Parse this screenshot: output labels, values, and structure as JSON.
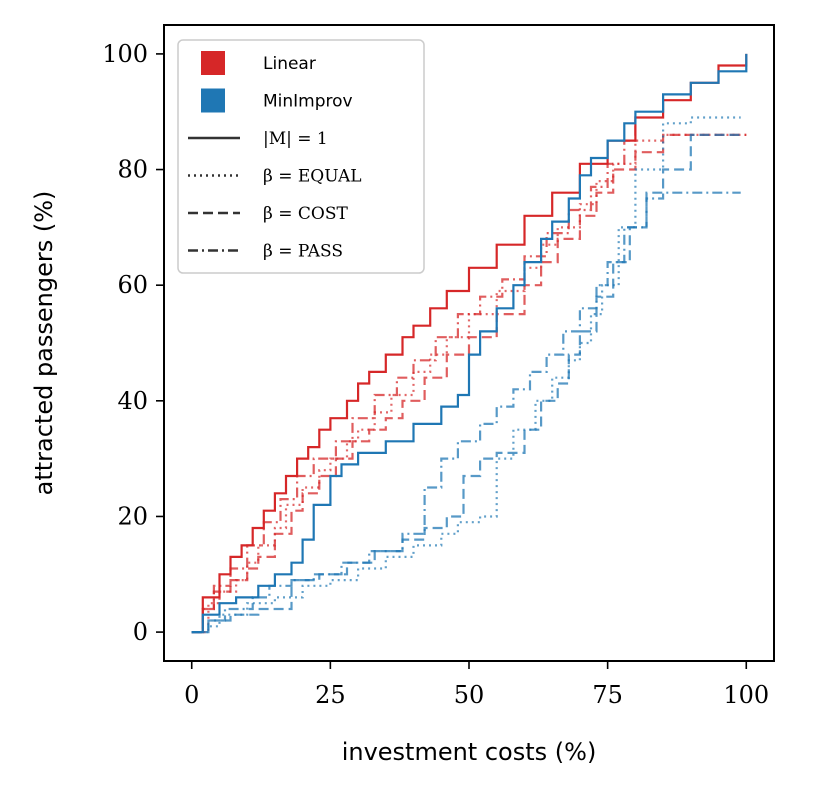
{
  "chart_data": {
    "type": "line",
    "step": true,
    "xlabel": "investment costs (%)",
    "ylabel": "attracted passengers (%)",
    "xlim": [
      -5,
      105
    ],
    "ylim": [
      -5,
      105
    ],
    "xticks": [
      0,
      25,
      50,
      75,
      100
    ],
    "yticks": [
      0,
      20,
      40,
      60,
      80,
      100
    ],
    "x_tick_labels": [
      "0",
      "25",
      "50",
      "75",
      "100"
    ],
    "y_tick_labels": [
      "0",
      "20",
      "40",
      "60",
      "80",
      "100"
    ],
    "colors": {
      "Linear": "#d62728",
      "MinImprov": "#1f77b4"
    },
    "legend": {
      "placement": "top-left",
      "methods": [
        {
          "name": "Linear",
          "color": "#d62728"
        },
        {
          "name": "MinImprov",
          "color": "#1f77b4"
        }
      ],
      "styles": [
        {
          "label": "|M| = 1",
          "dash": "solid"
        },
        {
          "label": "β = EQUAL",
          "dash": "dotted"
        },
        {
          "label": "β = COST",
          "dash": "dashed"
        },
        {
          "label": "β = PASS",
          "dash": "dashdot"
        }
      ]
    },
    "series": [
      {
        "name": "Linear |M|=1",
        "method": "Linear",
        "style": "solid",
        "alpha": 1.0,
        "x": [
          0,
          2,
          2,
          5,
          5,
          7,
          9,
          11,
          13,
          15,
          17,
          19,
          21,
          23,
          25,
          28,
          30,
          32,
          35,
          38,
          40,
          43,
          46,
          50,
          55,
          60,
          65,
          70,
          75,
          80,
          85,
          90,
          95,
          100
        ],
        "y": [
          0,
          0,
          6,
          6,
          10,
          13,
          15,
          18,
          21,
          24,
          27,
          30,
          32,
          35,
          37,
          40,
          43,
          45,
          48,
          51,
          53,
          56,
          59,
          63,
          67,
          72,
          76,
          81,
          85,
          89,
          92,
          95,
          98,
          100
        ]
      },
      {
        "name": "Linear EQUAL",
        "method": "Linear",
        "style": "dotted",
        "alpha": 0.7,
        "x": [
          0,
          3,
          5,
          8,
          10,
          12,
          15,
          17,
          20,
          23,
          25,
          28,
          30,
          33,
          36,
          40,
          43,
          46,
          50,
          55,
          60,
          63,
          66,
          70,
          73,
          76,
          80,
          85,
          90,
          95,
          100
        ],
        "y": [
          0,
          5,
          7,
          9,
          12,
          15,
          18,
          22,
          25,
          28,
          30,
          33,
          35,
          38,
          41,
          45,
          48,
          51,
          55,
          59,
          63,
          67,
          70,
          74,
          78,
          81,
          85,
          86,
          86,
          86,
          86
        ]
      },
      {
        "name": "Linear COST",
        "method": "Linear",
        "style": "dashed",
        "alpha": 0.75,
        "x": [
          0,
          2,
          4,
          7,
          10,
          12,
          15,
          18,
          20,
          23,
          26,
          29,
          32,
          35,
          38,
          42,
          46,
          50,
          55,
          60,
          63,
          66,
          70,
          73,
          76,
          80,
          85,
          90,
          95,
          100
        ],
        "y": [
          0,
          4,
          7,
          9,
          11,
          13,
          17,
          21,
          24,
          27,
          30,
          33,
          35,
          37,
          40,
          44,
          48,
          51,
          55,
          60,
          64,
          68,
          72,
          76,
          80,
          83,
          86,
          86,
          86,
          86
        ]
      },
      {
        "name": "Linear PASS",
        "method": "Linear",
        "style": "dashdot",
        "alpha": 0.75,
        "x": [
          0,
          2,
          4,
          7,
          10,
          13,
          16,
          19,
          22,
          26,
          29,
          33,
          37,
          40,
          44,
          48,
          52,
          56,
          60,
          64,
          68,
          72,
          75,
          78,
          80
        ],
        "y": [
          0,
          4,
          8,
          11,
          15,
          19,
          23,
          27,
          30,
          33,
          37,
          41,
          44,
          47,
          51,
          55,
          58,
          61,
          65,
          69,
          73,
          77,
          81,
          85,
          89
        ]
      },
      {
        "name": "MinImprov |M|=1",
        "method": "MinImprov",
        "style": "solid",
        "alpha": 1.0,
        "x": [
          0,
          2,
          2,
          5,
          8,
          12,
          15,
          18,
          20,
          22,
          25,
          27,
          30,
          35,
          40,
          45,
          48,
          50,
          52,
          55,
          58,
          60,
          63,
          65,
          68,
          70,
          72,
          75,
          78,
          80,
          85,
          90,
          95,
          100
        ],
        "y": [
          0,
          0,
          3,
          5,
          6,
          8,
          10,
          12,
          16,
          22,
          27,
          29,
          31,
          33,
          36,
          39,
          41,
          48,
          52,
          56,
          60,
          64,
          68,
          71,
          75,
          79,
          82,
          85,
          88,
          90,
          93,
          95,
          97,
          100
        ]
      },
      {
        "name": "MinImprov EQUAL",
        "method": "MinImprov",
        "style": "dotted",
        "alpha": 0.7,
        "x": [
          0,
          3,
          5,
          10,
          15,
          20,
          25,
          30,
          35,
          40,
          45,
          48,
          52,
          55,
          58,
          62,
          65,
          68,
          70,
          72,
          74,
          77,
          80,
          85,
          90,
          95,
          99
        ],
        "y": [
          0,
          1,
          3,
          5,
          6,
          8,
          9,
          11,
          13,
          15,
          17,
          19,
          20,
          30,
          35,
          40,
          44,
          47,
          50,
          55,
          60,
          70,
          80,
          88,
          89,
          89,
          89
        ]
      },
      {
        "name": "MinImprov COST",
        "method": "MinImprov",
        "style": "dashed",
        "alpha": 0.75,
        "x": [
          0,
          3,
          7,
          12,
          18,
          23,
          28,
          33,
          38,
          42,
          46,
          49,
          52,
          55,
          60,
          63,
          66,
          68,
          70,
          73,
          76,
          79,
          82,
          85,
          90,
          95,
          99
        ],
        "y": [
          0,
          2,
          3,
          4,
          9,
          10,
          12,
          14,
          16,
          18,
          20,
          27,
          30,
          31,
          35,
          40,
          43,
          48,
          52,
          58,
          64,
          70,
          76,
          80,
          86,
          86,
          86
        ]
      },
      {
        "name": "MinImprov PASS",
        "method": "MinImprov",
        "style": "dashdot",
        "alpha": 0.75,
        "x": [
          0,
          3,
          6,
          11,
          14,
          18,
          22,
          27,
          32,
          38,
          42,
          45,
          48,
          52,
          55,
          58,
          61,
          64,
          67,
          70,
          73,
          75,
          78,
          82,
          85,
          90,
          95,
          99
        ],
        "y": [
          0,
          2,
          4,
          6,
          8,
          9,
          10,
          12,
          14,
          17,
          25,
          30,
          33,
          36,
          39,
          42,
          45,
          48,
          52,
          56,
          60,
          64,
          70,
          75,
          76,
          76,
          76,
          76
        ]
      }
    ]
  }
}
